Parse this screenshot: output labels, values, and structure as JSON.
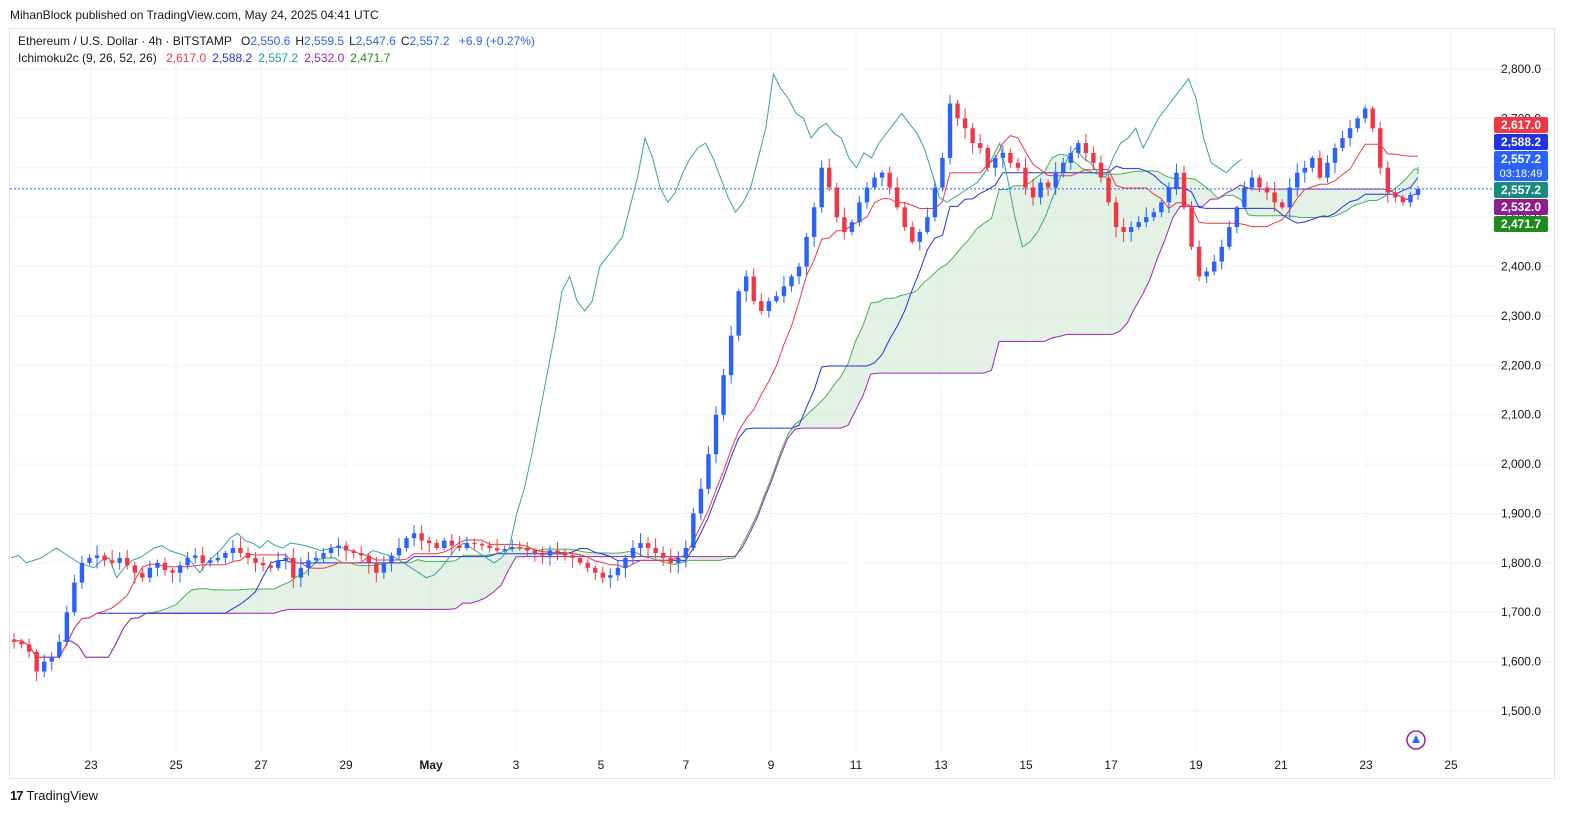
{
  "header": {
    "publisher_line": "MihanBlock published on TradingView.com, May 24, 2025 04:41 UTC"
  },
  "legend": {
    "symbol": "Ethereum / U.S. Dollar · 4h · BITSTAMP",
    "ohlc": [
      {
        "key": "O",
        "value": "2,550.6"
      },
      {
        "key": "H",
        "value": "2,559.5"
      },
      {
        "key": "L",
        "value": "2,547.6"
      },
      {
        "key": "C",
        "value": "2,557.2"
      }
    ],
    "change": "+6.9 (+0.27%)",
    "indicator": "Ichimoku2c (9, 26, 52, 26)",
    "indicator_values": [
      {
        "value": "2,617.0",
        "color": "#f23645"
      },
      {
        "value": "2,588.2",
        "color": "#2132e6"
      },
      {
        "value": "2,557.2",
        "color": "#22998f"
      },
      {
        "value": "2,532.0",
        "color": "#9c27b0"
      },
      {
        "value": "2,471.7",
        "color": "#1b8a1b"
      }
    ]
  },
  "price_badges": [
    {
      "text": "2,617.0",
      "price": 2617.0,
      "bg": "#f23645"
    },
    {
      "text": "2,588.2",
      "price": 2588.2,
      "bg": "#2132e6"
    },
    {
      "text": "2,557.2",
      "sub": "03:18:49",
      "price": 2557.2,
      "bg": "#2962ff",
      "tall": true
    },
    {
      "text": "2,557.2",
      "price": 2557.2,
      "bg": "#1b8a7e"
    },
    {
      "text": "2,532.0",
      "price": 2532.0,
      "bg": "#8e1d8e"
    },
    {
      "text": "2,471.7",
      "price": 2471.7,
      "bg": "#1f8a1f"
    }
  ],
  "footer": {
    "brand": "TradingView"
  },
  "chart_data": {
    "type": "candlestick",
    "title": "Ethereum / U.S. Dollar · 4h · BITSTAMP",
    "y_ticks": [
      "1,500.0",
      "1,600.0",
      "1,700.0",
      "1,800.0",
      "1,900.0",
      "2,000.0",
      "2,100.0",
      "2,200.0",
      "2,300.0",
      "2,400.0",
      "2,500.0",
      "2,600.0",
      "2,700.0",
      "2,800.0"
    ],
    "y_tick_values": [
      1500,
      1600,
      1700,
      1800,
      1900,
      2000,
      2100,
      2200,
      2300,
      2400,
      2500,
      2600,
      2700,
      2800
    ],
    "x_ticks": [
      "23",
      "25",
      "27",
      "29",
      "May",
      "3",
      "5",
      "7",
      "9",
      "11",
      "13",
      "15",
      "17",
      "19",
      "21",
      "23",
      "25"
    ],
    "x_tick_days": [
      -8,
      -6,
      -4,
      -2,
      0,
      2,
      4,
      6,
      8,
      10,
      12,
      14,
      16,
      18,
      20,
      22,
      24
    ],
    "ylim": [
      1440,
      2850
    ],
    "grid": true,
    "last_price": 2557.2,
    "colors": {
      "up": "#2962ff",
      "down": "#f23645",
      "tenkan": "#f23645",
      "kijun": "#2132e6",
      "chikou": "#3aa39a",
      "span_a": "#4caf50",
      "span_b": "#9c27b0",
      "cloud": "#c8e6c9"
    },
    "series_closes": [
      1640,
      1635,
      1620,
      1580,
      1600,
      1610,
      1640,
      1700,
      1760,
      1800,
      1810,
      1815,
      1805,
      1800,
      1810,
      1795,
      1780,
      1770,
      1790,
      1800,
      1785,
      1780,
      1795,
      1810,
      1815,
      1800,
      1805,
      1810,
      1820,
      1830,
      1820,
      1810,
      1800,
      1795,
      1790,
      1805,
      1810,
      1770,
      1790,
      1805,
      1810,
      1820,
      1830,
      1835,
      1825,
      1820,
      1815,
      1800,
      1780,
      1800,
      1815,
      1830,
      1850,
      1860,
      1845,
      1840,
      1830,
      1845,
      1835,
      1830,
      1840,
      1838,
      1835,
      1830,
      1825,
      1828,
      1832,
      1830,
      1825,
      1820,
      1815,
      1825,
      1820,
      1815,
      1810,
      1800,
      1790,
      1780,
      1770,
      1775,
      1790,
      1810,
      1830,
      1840,
      1830,
      1820,
      1810,
      1800,
      1810,
      1830,
      1900,
      1950,
      2020,
      2100,
      2180,
      2260,
      2350,
      2380,
      2330,
      2310,
      2330,
      2340,
      2360,
      2380,
      2400,
      2460,
      2520,
      2600,
      2560,
      2500,
      2470,
      2490,
      2530,
      2560,
      2580,
      2590,
      2560,
      2520,
      2480,
      2450,
      2470,
      2500,
      2560,
      2620,
      2730,
      2700,
      2680,
      2650,
      2640,
      2600,
      2620,
      2630,
      2610,
      2600,
      2560,
      2540,
      2570,
      2560,
      2590,
      2610,
      2630,
      2650,
      2630,
      2610,
      2580,
      2530,
      2480,
      2470,
      2480,
      2490,
      2500,
      2510,
      2530,
      2560,
      2590,
      2520,
      2440,
      2380,
      2390,
      2410,
      2440,
      2480,
      2520,
      2560,
      2580,
      2560,
      2550,
      2530,
      2520,
      2560,
      2590,
      2600,
      2620,
      2580,
      2610,
      2640,
      2660,
      2680,
      2700,
      2720,
      2680,
      2600,
      2550,
      2540,
      2530,
      2545,
      2557
    ]
  }
}
